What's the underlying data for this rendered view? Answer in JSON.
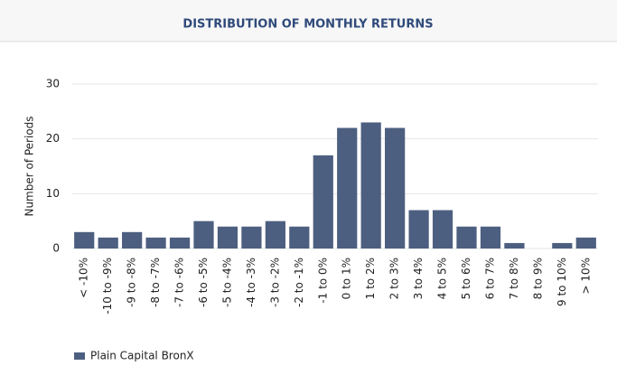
{
  "chart_data": {
    "type": "bar",
    "title": "DISTRIBUTION OF MONTHLY RETURNS",
    "y_label": "Number of Periods",
    "categories": [
      "< -10%",
      "-10 to -9%",
      "-9 to -8%",
      "-8 to -7%",
      "-7 to -6%",
      "-6 to -5%",
      "-5 to -4%",
      "-4 to -3%",
      "-3 to -2%",
      "-2 to -1%",
      "-1 to 0%",
      "0 to 1%",
      "1 to 2%",
      "2 to 3%",
      "3 to 4%",
      "4 to 5%",
      "5 to 6%",
      "6 to 7%",
      "7 to 8%",
      "8 to 9%",
      "9 to 10%",
      "> 10%"
    ],
    "series": [
      {
        "name": "Plain Capital BronX",
        "color": "#4d5f80",
        "values": [
          3,
          2,
          3,
          2,
          2,
          5,
          4,
          4,
          5,
          4,
          17,
          22,
          23,
          22,
          7,
          7,
          4,
          4,
          1,
          0,
          1,
          2
        ]
      }
    ],
    "ylim": [
      0,
      30
    ],
    "yticks": [
      0,
      10,
      20,
      30
    ],
    "grid": true
  }
}
